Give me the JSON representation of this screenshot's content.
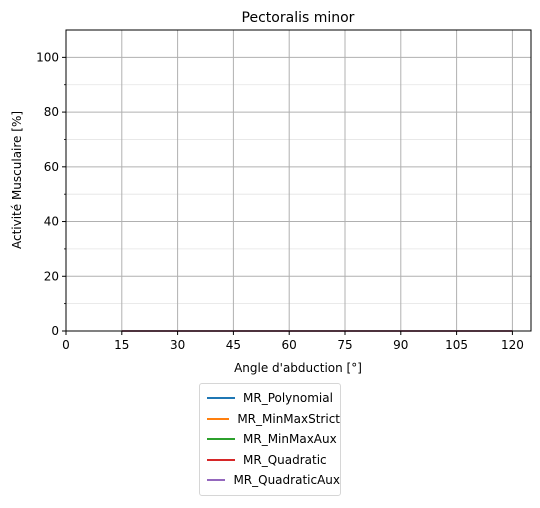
{
  "chart_data": {
    "type": "line",
    "title": "Pectoralis minor",
    "xlabel": "Angle d'abduction [°]",
    "ylabel": "Activité Musculaire [%]",
    "xlim": [
      0,
      125
    ],
    "ylim": [
      0,
      110
    ],
    "x_ticks": [
      "0",
      "15",
      "30",
      "45",
      "60",
      "75",
      "90",
      "105",
      "120"
    ],
    "y_ticks": [
      "0",
      "20",
      "40",
      "60",
      "80",
      "100"
    ],
    "grid": true,
    "legend_position": "below",
    "series": [
      {
        "name": "MR_Polynomial",
        "color": "#1f77b4",
        "x": [
          15,
          30,
          45,
          60,
          75,
          90,
          105,
          120
        ],
        "values": [
          0,
          0,
          0,
          0,
          0,
          0,
          0,
          0
        ]
      },
      {
        "name": "MR_MinMaxStrict",
        "color": "#ff7f0e",
        "x": [
          15,
          30,
          45,
          60,
          75,
          90,
          105,
          120
        ],
        "values": [
          0,
          0,
          0,
          0,
          0,
          0,
          0,
          0
        ]
      },
      {
        "name": "MR_MinMaxAux",
        "color": "#2ca02c",
        "x": [
          15,
          30,
          45,
          60,
          75,
          90,
          105,
          120
        ],
        "values": [
          0,
          0,
          0,
          0,
          0,
          0,
          0,
          0
        ]
      },
      {
        "name": "MR_Quadratic",
        "color": "#d62728",
        "x": [
          15,
          30,
          45,
          60,
          75,
          90,
          105,
          120
        ],
        "values": [
          0,
          0,
          0,
          0,
          0,
          0,
          0,
          0
        ]
      },
      {
        "name": "MR_QuadraticAux",
        "color": "#9467bd",
        "x": [
          15,
          30,
          45,
          60,
          75,
          90,
          105,
          120
        ],
        "values": [
          0,
          0,
          0,
          0,
          0,
          0,
          0,
          0
        ]
      }
    ]
  }
}
